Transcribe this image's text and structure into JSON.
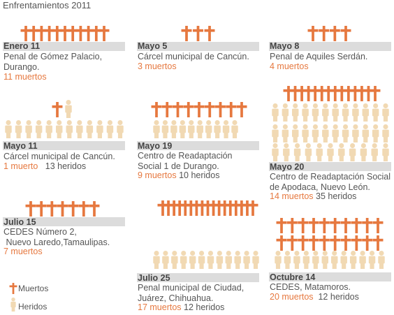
{
  "title": "Enfrentamientos 2011",
  "colors": {
    "dead": "#e6783f",
    "injured": "#f1d9b3",
    "band": "#dcdcdc"
  },
  "legend": {
    "dead_label": "Muertos",
    "injured_label": "Heridos"
  },
  "events": [
    {
      "date": "Enero 11",
      "place": "Penal de Gómez Palacio,\nDurango.",
      "dead": 11,
      "injured": 0,
      "dead_text": "11 muertos",
      "injured_text": ""
    },
    {
      "date": "Mayo 5",
      "place": "Cárcel municipal de Cancún.",
      "dead": 3,
      "injured": 0,
      "dead_text": "3 muertos",
      "injured_text": ""
    },
    {
      "date": "Mayo 8",
      "place": "Penal de Aquiles Serdán.",
      "dead": 4,
      "injured": 0,
      "dead_text": "4 muertos",
      "injured_text": ""
    },
    {
      "date": "Mayo 11",
      "place": "Cárcel municipal de Cancún.",
      "dead": 1,
      "injured": 13,
      "dead_text": "1 muerto",
      "injured_text": "13 heridos"
    },
    {
      "date": "Mayo 19",
      "place": "Centro de Readaptación\nSocial 1 de Durango.",
      "dead": 9,
      "injured": 10,
      "dead_text": "9 muertos",
      "injured_text": "10 heridos"
    },
    {
      "date": "Mayo 20",
      "place": "Centro de Readaptación Social\nde Apodaca, Nuevo León.",
      "dead": 14,
      "injured": 35,
      "dead_text": "14 muertos",
      "injured_text": "35 heridos"
    },
    {
      "date": "Julio 15",
      "place": "CEDES Número 2,\n Nuevo Laredo,Tamaulipas.",
      "dead": 7,
      "injured": 0,
      "dead_text": "7 muertos",
      "injured_text": ""
    },
    {
      "date": "Julio 25",
      "place": "Penal municipal de Ciudad,\nJuárez, Chihuahua.",
      "dead": 17,
      "injured": 12,
      "dead_text": "17 muertos",
      "injured_text": "12 heridos"
    },
    {
      "date": "Octubre 14",
      "place": "CEDES, Matamoros.",
      "dead": 20,
      "injured": 12,
      "dead_text": "20 muertos",
      "injured_text": "12 heridos"
    }
  ]
}
